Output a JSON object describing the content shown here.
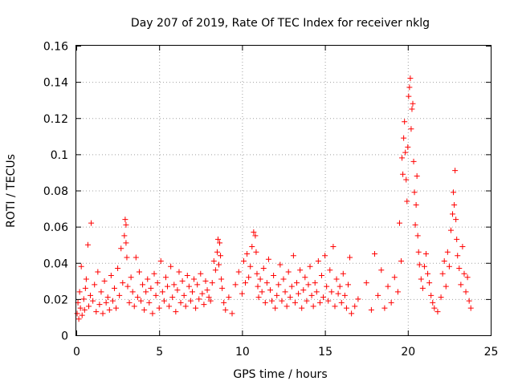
{
  "chart_data": {
    "type": "scatter",
    "title": "Day 207 of 2019, Rate Of TEC Index for receiver nklg",
    "xlabel": "GPS time / hours",
    "ylabel": "ROTI / TECUs",
    "xlim": [
      0,
      25
    ],
    "ylim": [
      0,
      0.16
    ],
    "xticks": [
      0,
      5,
      10,
      15,
      20,
      25
    ],
    "xtick_labels": [
      "0",
      "5",
      "10",
      "15",
      "20",
      "25"
    ],
    "yticks": [
      0,
      0.02,
      0.04,
      0.06,
      0.08,
      0.1,
      0.12,
      0.14,
      0.16
    ],
    "ytick_labels": [
      "0",
      "0.02",
      "0.04",
      "0.06",
      "0.08",
      "0.1",
      "0.12",
      "0.14",
      "0.16"
    ],
    "grid": true,
    "marker": "+",
    "color": "#ff0000",
    "series": [
      {
        "name": "ROTI",
        "x": [
          0.05,
          0.1,
          0.15,
          0.2,
          0.25,
          0.3,
          0.35,
          0.45,
          0.5,
          0.55,
          0.6,
          0.7,
          0.75,
          0.85,
          0.9,
          1.0,
          1.1,
          1.2,
          1.3,
          1.4,
          1.5,
          1.6,
          1.7,
          1.8,
          1.9,
          2.0,
          2.1,
          2.2,
          2.3,
          2.4,
          2.5,
          2.6,
          2.7,
          2.8,
          2.9,
          2.95,
          3.0,
          3.0,
          3.05,
          3.1,
          3.2,
          3.3,
          3.4,
          3.5,
          3.6,
          3.7,
          3.8,
          3.9,
          4.0,
          4.1,
          4.2,
          4.3,
          4.4,
          4.5,
          4.6,
          4.7,
          4.8,
          4.9,
          5.0,
          5.1,
          5.2,
          5.3,
          5.4,
          5.5,
          5.6,
          5.7,
          5.8,
          5.9,
          6.0,
          6.1,
          6.2,
          6.3,
          6.4,
          6.5,
          6.6,
          6.7,
          6.8,
          6.9,
          7.0,
          7.1,
          7.2,
          7.3,
          7.4,
          7.5,
          7.6,
          7.7,
          7.8,
          7.9,
          8.0,
          8.1,
          8.2,
          8.3,
          8.4,
          8.5,
          8.55,
          8.6,
          8.65,
          8.7,
          8.75,
          8.8,
          8.9,
          9.0,
          9.2,
          9.4,
          9.6,
          9.8,
          10.0,
          10.1,
          10.2,
          10.3,
          10.4,
          10.5,
          10.6,
          10.7,
          10.8,
          10.85,
          10.9,
          10.95,
          11.0,
          11.1,
          11.2,
          11.3,
          11.4,
          11.5,
          11.6,
          11.7,
          11.8,
          11.9,
          12.0,
          12.1,
          12.2,
          12.3,
          12.4,
          12.5,
          12.6,
          12.7,
          12.8,
          12.9,
          13.0,
          13.1,
          13.2,
          13.3,
          13.4,
          13.5,
          13.6,
          13.7,
          13.8,
          13.9,
          14.0,
          14.1,
          14.2,
          14.3,
          14.4,
          14.5,
          14.6,
          14.7,
          14.8,
          14.9,
          15.0,
          15.1,
          15.2,
          15.3,
          15.4,
          15.5,
          15.6,
          15.7,
          15.8,
          15.9,
          16.0,
          16.1,
          16.2,
          16.3,
          16.4,
          16.5,
          16.6,
          16.8,
          17.0,
          17.5,
          17.8,
          18.0,
          18.2,
          18.4,
          18.6,
          18.8,
          19.0,
          19.2,
          19.4,
          19.5,
          19.6,
          19.65,
          19.7,
          19.75,
          19.8,
          19.85,
          19.9,
          19.95,
          20.0,
          20.05,
          20.1,
          20.15,
          20.2,
          20.25,
          20.3,
          20.35,
          20.4,
          20.45,
          20.5,
          20.55,
          20.6,
          20.65,
          20.7,
          20.8,
          20.9,
          21.0,
          21.1,
          21.2,
          21.3,
          21.4,
          21.5,
          21.6,
          21.8,
          22.0,
          22.1,
          22.2,
          22.3,
          22.4,
          22.5,
          22.6,
          22.7,
          22.75,
          22.8,
          22.85,
          22.9,
          22.95,
          23.0,
          23.1,
          23.2,
          23.3,
          23.4,
          23.5,
          23.6,
          23.7,
          23.8
        ],
        "y": [
          0.012,
          0.018,
          0.009,
          0.024,
          0.015,
          0.038,
          0.011,
          0.02,
          0.014,
          0.026,
          0.031,
          0.05,
          0.016,
          0.022,
          0.062,
          0.019,
          0.028,
          0.013,
          0.035,
          0.017,
          0.024,
          0.012,
          0.03,
          0.018,
          0.021,
          0.014,
          0.033,
          0.019,
          0.026,
          0.015,
          0.037,
          0.022,
          0.048,
          0.029,
          0.055,
          0.064,
          0.061,
          0.051,
          0.043,
          0.027,
          0.018,
          0.032,
          0.024,
          0.016,
          0.043,
          0.021,
          0.035,
          0.019,
          0.028,
          0.014,
          0.024,
          0.031,
          0.018,
          0.026,
          0.012,
          0.034,
          0.022,
          0.029,
          0.015,
          0.041,
          0.024,
          0.019,
          0.032,
          0.027,
          0.016,
          0.038,
          0.021,
          0.028,
          0.013,
          0.025,
          0.035,
          0.018,
          0.03,
          0.022,
          0.016,
          0.033,
          0.027,
          0.019,
          0.024,
          0.031,
          0.015,
          0.028,
          0.02,
          0.034,
          0.023,
          0.017,
          0.03,
          0.025,
          0.021,
          0.019,
          0.029,
          0.041,
          0.036,
          0.046,
          0.053,
          0.039,
          0.051,
          0.044,
          0.031,
          0.026,
          0.018,
          0.014,
          0.021,
          0.012,
          0.028,
          0.035,
          0.023,
          0.041,
          0.029,
          0.045,
          0.032,
          0.038,
          0.049,
          0.057,
          0.055,
          0.046,
          0.034,
          0.027,
          0.021,
          0.031,
          0.024,
          0.037,
          0.018,
          0.029,
          0.042,
          0.025,
          0.019,
          0.033,
          0.015,
          0.022,
          0.028,
          0.039,
          0.019,
          0.031,
          0.024,
          0.016,
          0.035,
          0.021,
          0.027,
          0.044,
          0.018,
          0.029,
          0.023,
          0.036,
          0.015,
          0.025,
          0.032,
          0.019,
          0.028,
          0.038,
          0.022,
          0.016,
          0.029,
          0.024,
          0.041,
          0.018,
          0.033,
          0.021,
          0.044,
          0.027,
          0.019,
          0.036,
          0.024,
          0.049,
          0.016,
          0.031,
          0.023,
          0.027,
          0.018,
          0.034,
          0.022,
          0.015,
          0.028,
          0.043,
          0.012,
          0.016,
          0.02,
          0.029,
          0.014,
          0.045,
          0.022,
          0.036,
          0.015,
          0.027,
          0.018,
          0.032,
          0.024,
          0.062,
          0.041,
          0.098,
          0.089,
          0.109,
          0.118,
          0.101,
          0.086,
          0.074,
          0.104,
          0.132,
          0.137,
          0.142,
          0.114,
          0.125,
          0.128,
          0.096,
          0.079,
          0.061,
          0.072,
          0.088,
          0.055,
          0.046,
          0.039,
          0.031,
          0.026,
          0.038,
          0.045,
          0.034,
          0.029,
          0.022,
          0.018,
          0.015,
          0.013,
          0.021,
          0.034,
          0.041,
          0.027,
          0.046,
          0.038,
          0.058,
          0.067,
          0.079,
          0.072,
          0.091,
          0.064,
          0.053,
          0.044,
          0.037,
          0.028,
          0.049,
          0.034,
          0.024,
          0.032,
          0.019,
          0.015
        ]
      }
    ]
  }
}
